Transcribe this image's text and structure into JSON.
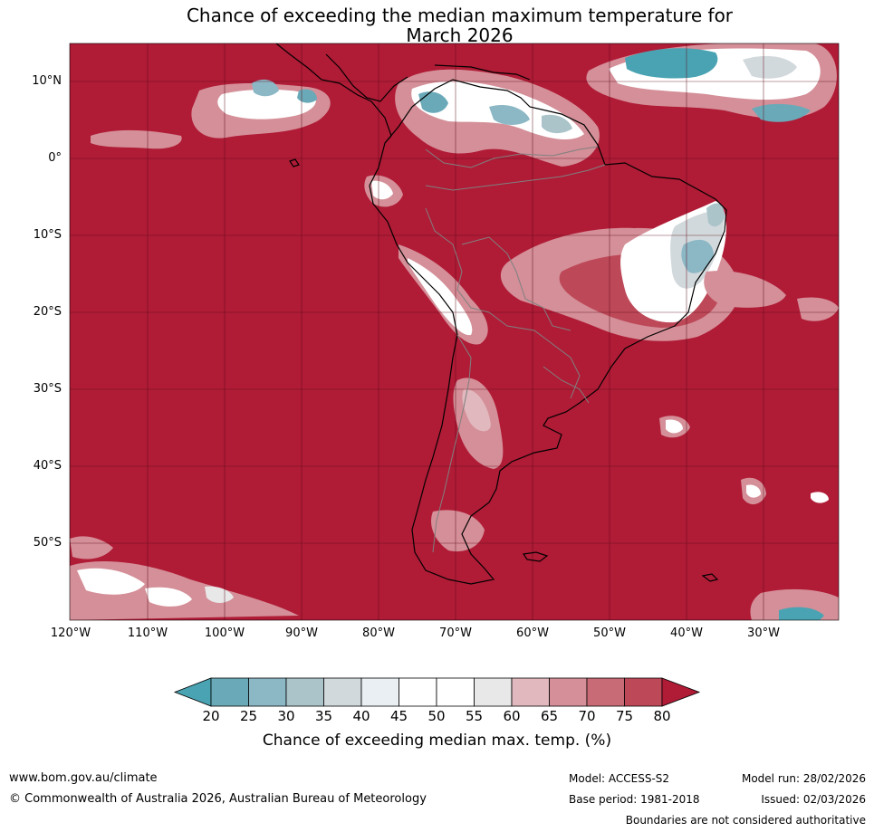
{
  "title": {
    "line1": "Chance of exceeding the median maximum temperature for",
    "line2": "March 2026"
  },
  "map": {
    "background_color": "#b01b36",
    "grid_color": "#5a0a18",
    "lat_labels": [
      "10°N",
      "0°",
      "10°S",
      "20°S",
      "30°S",
      "40°S",
      "50°S"
    ],
    "lon_labels": [
      "120°W",
      "110°W",
      "100°W",
      "90°W",
      "80°W",
      "70°W",
      "60°W",
      "50°W",
      "40°W",
      "30°W"
    ]
  },
  "colorbar": {
    "colors": [
      "#4aa3b2",
      "#6aaab8",
      "#8cb7c5",
      "#aac4ca",
      "#d2d9dc",
      "#e9eff2",
      "#ffffff",
      "#ffffff",
      "#e8e8e8",
      "#e0b8be",
      "#d48f98",
      "#c96b76",
      "#bd4858",
      "#b01b36"
    ],
    "ticks": [
      "20",
      "25",
      "30",
      "35",
      "40",
      "45",
      "50",
      "55",
      "60",
      "65",
      "70",
      "75",
      "80"
    ],
    "title": "Chance of exceeding median max. temp. (%)"
  },
  "footer": {
    "website": "www.bom.gov.au/climate",
    "copyright": "© Commonwealth of Australia 2026, Australian Bureau of Meteorology",
    "model": "Model: ACCESS-S2",
    "base_period": "Base period: 1981-2018",
    "model_run": "Model run: 28/02/2026",
    "issued": "Issued: 02/03/2026",
    "disclaimer": "Boundaries are not considered authoritative"
  }
}
